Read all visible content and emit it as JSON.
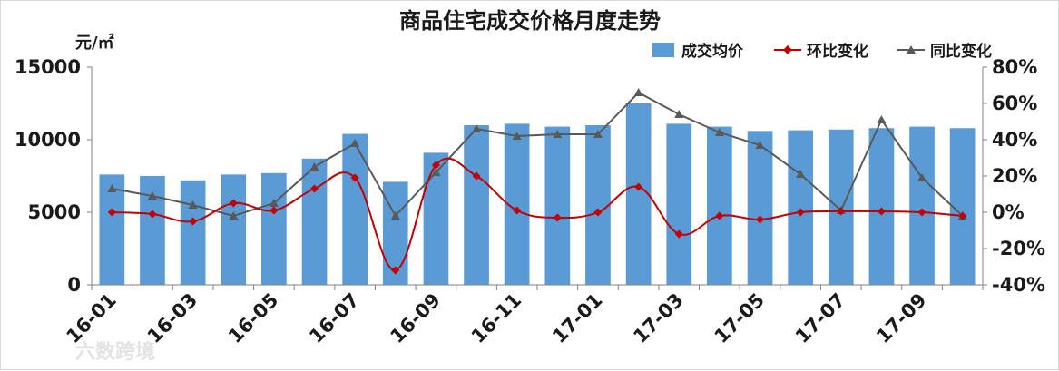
{
  "chart_data": {
    "type": "bar",
    "title": "商品住宅成交价格月度走势",
    "ylabel": "元/㎡",
    "ylim": [
      0,
      15000
    ],
    "y_ticks": [
      "0",
      "5000",
      "10000",
      "15000"
    ],
    "y2lim": [
      -40,
      80
    ],
    "y2_ticks": [
      "-40%",
      "-20%",
      "0%",
      "20%",
      "40%",
      "60%",
      "80%"
    ],
    "grid": false,
    "legend_position": "top-right",
    "categories": [
      "16-01",
      "16-02",
      "16-03",
      "16-04",
      "16-05",
      "16-06",
      "16-07",
      "16-08",
      "16-09",
      "16-10",
      "16-11",
      "16-12",
      "17-01",
      "17-02",
      "17-03",
      "17-04",
      "17-05",
      "17-06",
      "17-07",
      "17-08",
      "17-09",
      "17-10"
    ],
    "x_tick_labels": [
      "16-01",
      "16-03",
      "16-05",
      "16-07",
      "16-09",
      "16-11",
      "17-01",
      "17-03",
      "17-05",
      "17-07",
      "17-09"
    ],
    "series": [
      {
        "name": "成交均价",
        "type": "bar",
        "axis": "left",
        "color": "#5b9bd5",
        "values": [
          7600,
          7500,
          7200,
          7600,
          7700,
          8700,
          10400,
          7100,
          9100,
          11000,
          11100,
          10900,
          11000,
          12500,
          11100,
          10900,
          10600,
          10650,
          10700,
          10800,
          10900,
          10800
        ]
      },
      {
        "name": "环比变化",
        "type": "line",
        "axis": "right",
        "color": "#c00000",
        "marker": "diamond",
        "values": [
          0,
          -1,
          -5,
          5,
          1,
          13,
          19,
          -32,
          26,
          20,
          1,
          -3,
          0,
          14,
          -12,
          -2,
          -4,
          0,
          0.5,
          0.5,
          0,
          -2
        ]
      },
      {
        "name": "同比变化",
        "type": "line",
        "axis": "right",
        "color": "#595959",
        "marker": "triangle",
        "values": [
          13,
          9,
          4,
          -2,
          5,
          25,
          38,
          -2,
          22,
          46,
          42,
          43,
          43,
          66,
          54,
          44,
          37,
          21,
          1,
          51,
          19,
          -2
        ]
      }
    ]
  },
  "watermark": "六数跨境"
}
